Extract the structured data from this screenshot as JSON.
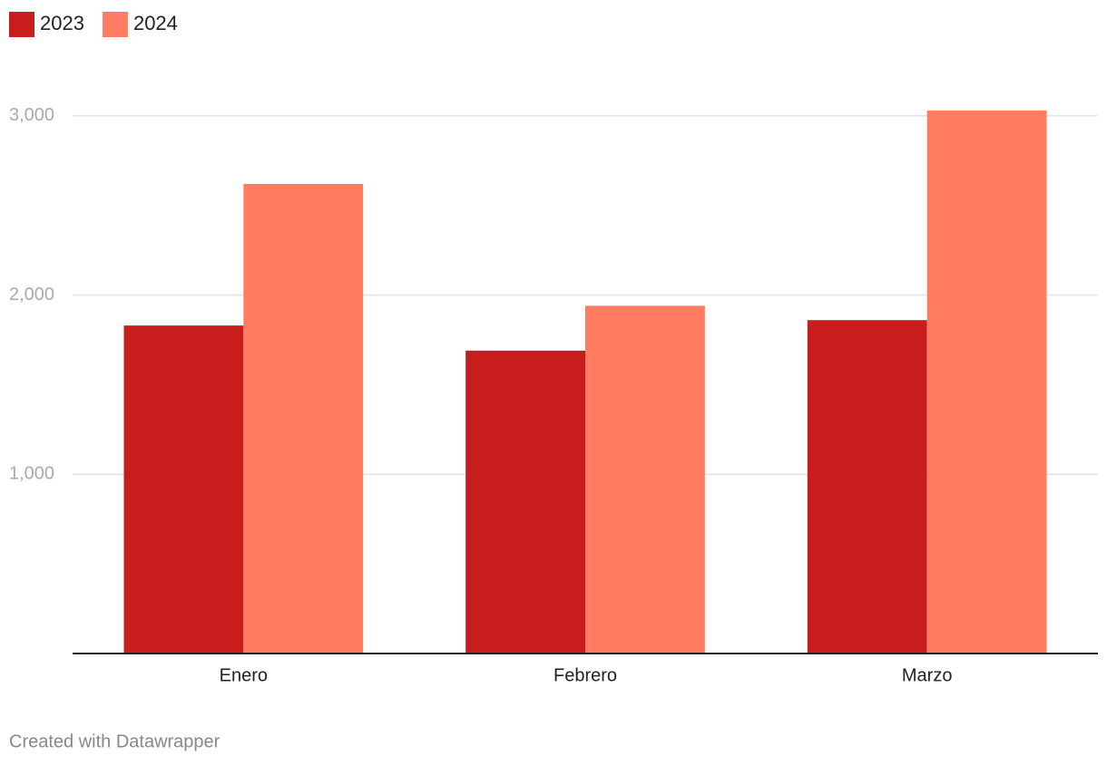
{
  "chart_data": {
    "type": "grouped_bar",
    "categories": [
      "Enero",
      "Febrero",
      "Marzo"
    ],
    "series": [
      {
        "name": "2023",
        "color": "#c71e1d",
        "values": [
          1830,
          1690,
          1860
        ]
      },
      {
        "name": "2024",
        "color": "#ff7c62",
        "values": [
          2620,
          1940,
          3030
        ]
      }
    ],
    "ylim": [
      0,
      3100
    ],
    "yticks": [
      {
        "value": 1000,
        "label": "1,000"
      },
      {
        "value": 2000,
        "label": "2,000"
      },
      {
        "value": 3000,
        "label": "3,000"
      }
    ],
    "grid": true,
    "credit": "Created with Datawrapper"
  }
}
